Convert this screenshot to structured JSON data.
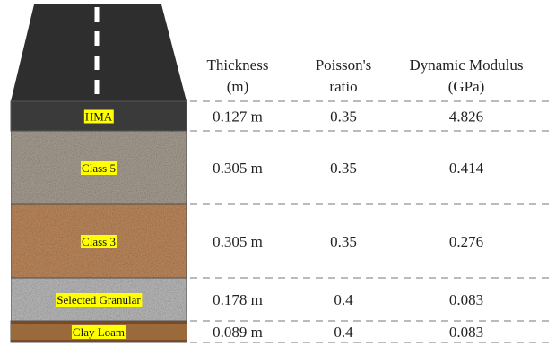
{
  "header": {
    "columns": [
      [
        "Thickness",
        "(m)"
      ],
      [
        "Poisson's",
        "ratio"
      ],
      [
        "Dynamic Modulus",
        "(GPa)"
      ]
    ]
  },
  "layers": [
    {
      "name": "HMA",
      "thickness": "0.127 m",
      "poisson": "0.35",
      "modulus": "4.826"
    },
    {
      "name": "Class 5",
      "thickness": "0.305 m",
      "poisson": "0.35",
      "modulus": "0.414"
    },
    {
      "name": "Class 3",
      "thickness": "0.305 m",
      "poisson": "0.35",
      "modulus": "0.276"
    },
    {
      "name": "Selected Granular",
      "thickness": "0.178 m",
      "poisson": "0.4",
      "modulus": "0.083"
    },
    {
      "name": "Clay Loam",
      "thickness": "0.089 m",
      "poisson": "0.4",
      "modulus": "0.083"
    }
  ]
}
